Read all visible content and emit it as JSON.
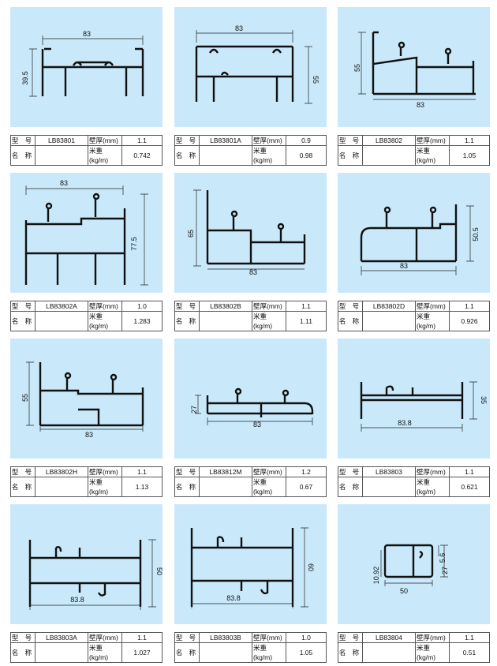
{
  "labels": {
    "model": "型 号",
    "name": "名 称",
    "thickness": "壁厚(mm)",
    "weight": "米重(kg/m)"
  },
  "cards": [
    {
      "model": "LB83801",
      "thickness": "1.1",
      "weight": "0.742",
      "dims": [
        "83",
        "39.5"
      ]
    },
    {
      "model": "LB83801A",
      "thickness": "0.9",
      "weight": "0.98",
      "dims": [
        "83",
        "55"
      ]
    },
    {
      "model": "LB83802",
      "thickness": "1.1",
      "weight": "1.05",
      "dims": [
        "83",
        "55"
      ]
    },
    {
      "model": "LB83802A",
      "thickness": "1.0",
      "weight": "1.283",
      "dims": [
        "83",
        "77.5"
      ]
    },
    {
      "model": "LB83802B",
      "thickness": "1.1",
      "weight": "1.11",
      "dims": [
        "83",
        "65"
      ]
    },
    {
      "model": "LB83802D",
      "thickness": "1.1",
      "weight": "0.926",
      "dims": [
        "83",
        "50.5"
      ]
    },
    {
      "model": "LB83802H",
      "thickness": "1.1",
      "weight": "1.13",
      "dims": [
        "83",
        "55"
      ]
    },
    {
      "model": "LB83812M",
      "thickness": "1.2",
      "weight": "0.67",
      "dims": [
        "83",
        "27"
      ]
    },
    {
      "model": "LB83803",
      "thickness": "1.1",
      "weight": "0.621",
      "dims": [
        "83.8",
        "35"
      ]
    },
    {
      "model": "LB83803A",
      "thickness": "1.1",
      "weight": "1.027",
      "dims": [
        "83.8",
        "50"
      ]
    },
    {
      "model": "LB83803B",
      "thickness": "1.0",
      "weight": "1.05",
      "dims": [
        "83.8",
        "60"
      ]
    },
    {
      "model": "LB83804",
      "thickness": "1.1",
      "weight": "0.51",
      "dims": [
        "50",
        "27",
        "10.92",
        "5.6"
      ]
    }
  ]
}
